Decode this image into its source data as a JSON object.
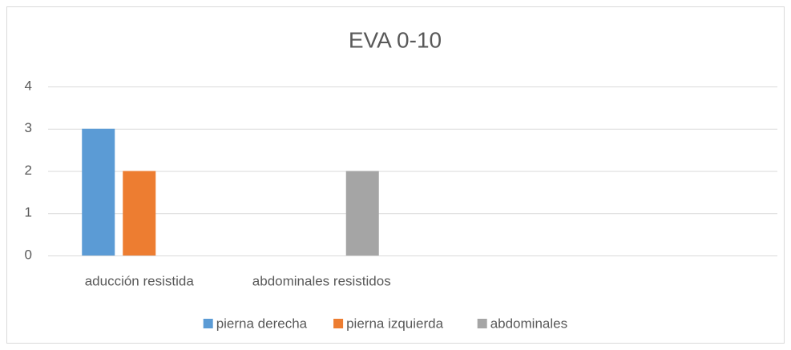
{
  "chart_data": {
    "type": "bar",
    "title": "EVA 0-10",
    "categories": [
      "aducción resistida",
      "abdominales resistidos",
      null,
      null
    ],
    "series": [
      {
        "name": "pierna derecha",
        "color": "#5b9bd5",
        "values": [
          3,
          null,
          null,
          null
        ]
      },
      {
        "name": "pierna izquierda",
        "color": "#ed7d31",
        "values": [
          2,
          null,
          null,
          null
        ]
      },
      {
        "name": "abdominales",
        "color": "#a5a5a5",
        "values": [
          null,
          2,
          null,
          null
        ]
      }
    ],
    "ylim": [
      0,
      4
    ],
    "yticks": [
      0,
      1,
      2,
      3,
      4
    ],
    "grid": true,
    "legend": "bottom"
  }
}
